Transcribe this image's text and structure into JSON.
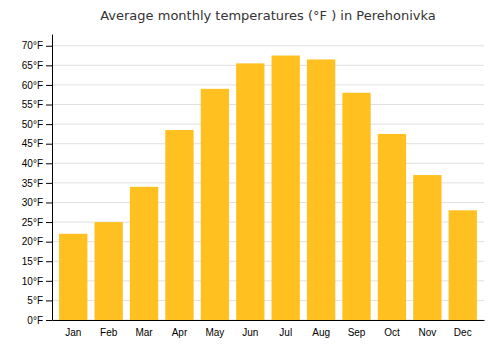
{
  "chart_data": {
    "type": "bar",
    "title": "Average monthly temperatures (°F ) in Perehonivka",
    "categories": [
      "Jan",
      "Feb",
      "Mar",
      "Apr",
      "May",
      "Jun",
      "Jul",
      "Aug",
      "Sep",
      "Oct",
      "Nov",
      "Dec"
    ],
    "values": [
      22,
      25,
      34,
      48.5,
      59,
      65.5,
      67.5,
      66.5,
      58,
      47.5,
      37,
      28
    ],
    "color": "#FFC020",
    "ylim": [
      0,
      73
    ],
    "yticks": [
      {
        "value": 0,
        "label": "0°F"
      },
      {
        "value": 5,
        "label": "5°F"
      },
      {
        "value": 10,
        "label": "10°F"
      },
      {
        "value": 15,
        "label": "15°F"
      },
      {
        "value": 20,
        "label": "20°F"
      },
      {
        "value": 25,
        "label": "25°F"
      },
      {
        "value": 30,
        "label": "30°F"
      },
      {
        "value": 35,
        "label": "35°F"
      },
      {
        "value": 40,
        "label": "40°F"
      },
      {
        "value": 45,
        "label": "45°F"
      },
      {
        "value": 50,
        "label": "50°F"
      },
      {
        "value": 55,
        "label": "55°F"
      },
      {
        "value": 60,
        "label": "60°F"
      },
      {
        "value": 65,
        "label": "65°F"
      },
      {
        "value": 70,
        "label": "70°F"
      }
    ],
    "grid": true
  }
}
